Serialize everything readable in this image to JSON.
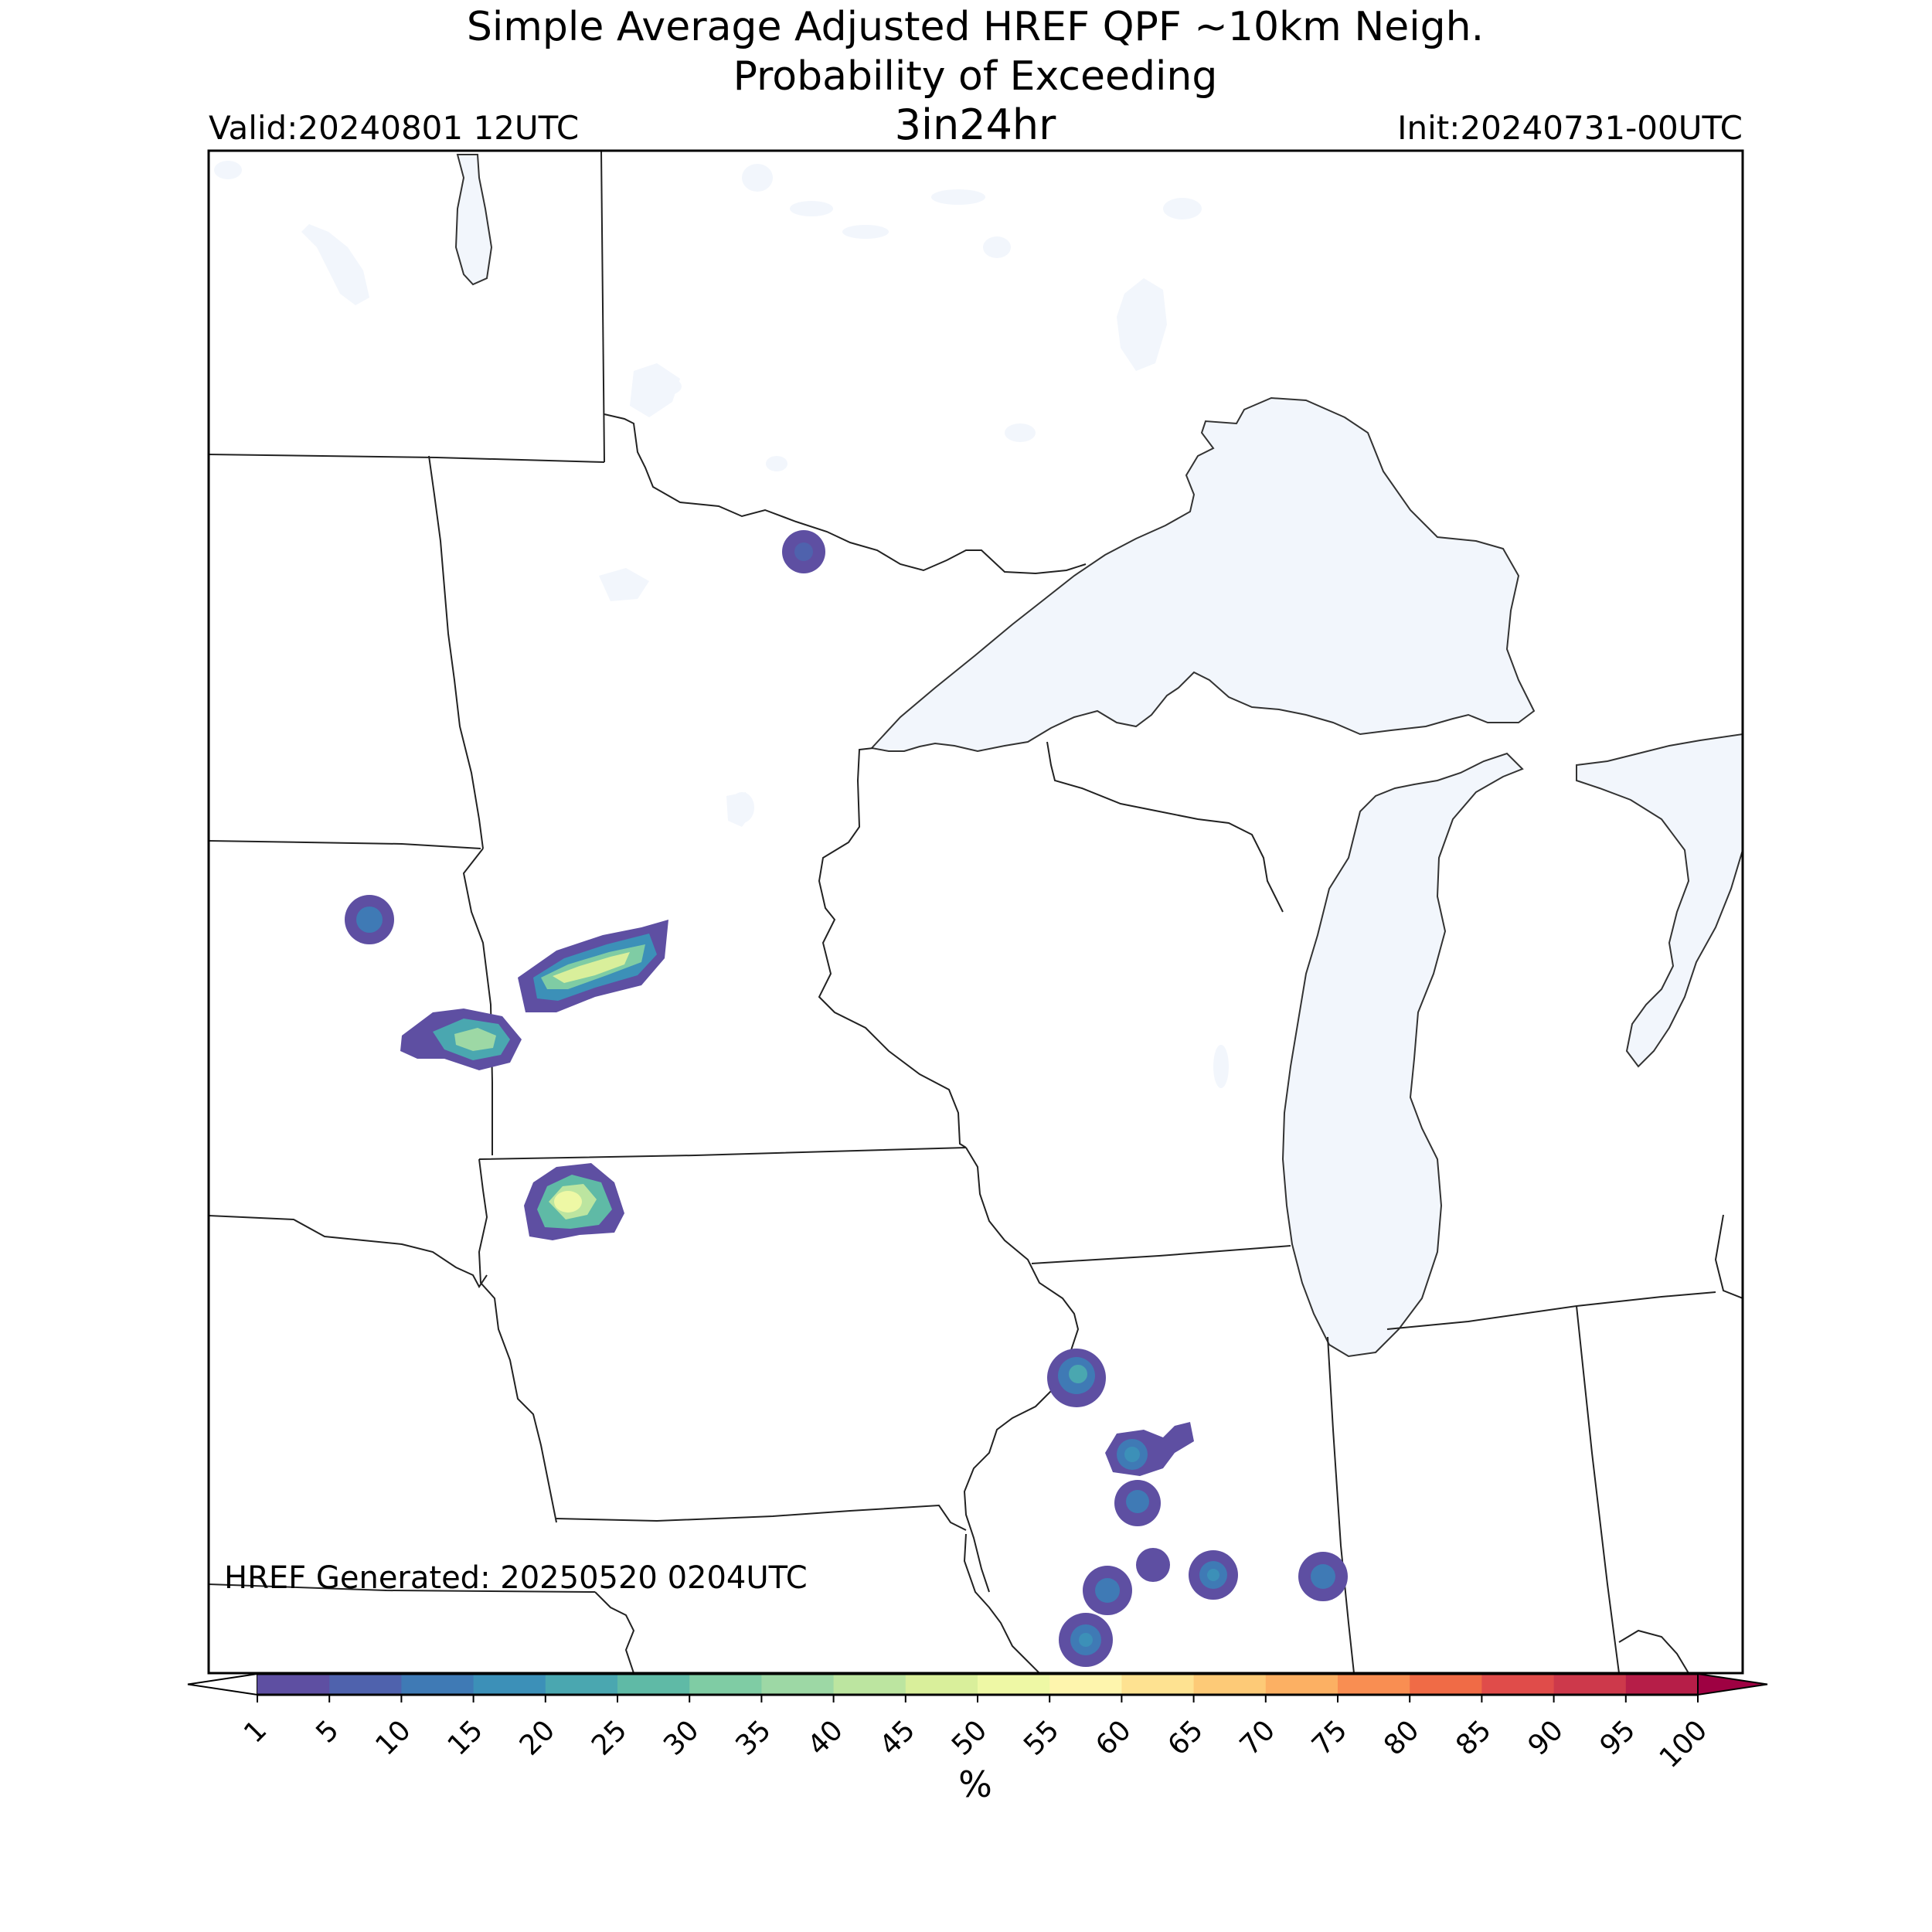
{
  "title": {
    "line1": "Simple Average Adjusted HREF QPF ~10km Neigh.",
    "line2": "Probability of Exceeding",
    "threshold": "3in24hr",
    "valid": "Valid:20240801 12UTC",
    "init": "Init:20240731-00UTC"
  },
  "footer": {
    "generated": "HREF Generated: 20250520 0204UTC"
  },
  "colorbar": {
    "unit_label": "%",
    "ticks": [
      "1",
      "5",
      "10",
      "15",
      "20",
      "25",
      "30",
      "35",
      "40",
      "45",
      "50",
      "55",
      "60",
      "65",
      "70",
      "75",
      "80",
      "85",
      "90",
      "95",
      "100"
    ],
    "colors": [
      "#5e4fa2",
      "#4f62ad",
      "#3f7ab5",
      "#3c90b8",
      "#4aa7b0",
      "#5fbaa6",
      "#7fcca4",
      "#9dd8a5",
      "#bce5a0",
      "#d9ef9b",
      "#eef8a5",
      "#fef5ad",
      "#fee291",
      "#fdca77",
      "#fcb063",
      "#f98e52",
      "#f06b46",
      "#e04c4a",
      "#cd394b",
      "#b61e48",
      "#9e0142"
    ]
  },
  "map_colors": {
    "water": "#f2f6fc",
    "land": "#ffffff",
    "borders": "#222222"
  },
  "chart_data": {
    "type": "heatmap",
    "value_unit": "%",
    "features": [
      {
        "id": "minnesota-arrowhead-cell",
        "max_probability": 5
      },
      {
        "id": "south-dakota-cell",
        "max_probability": 10
      },
      {
        "id": "sw-minnesota-band",
        "max_probability": 45
      },
      {
        "id": "ne-south-dakota-cell",
        "max_probability": 35
      },
      {
        "id": "nw-iowa-cell",
        "max_probability": 45
      },
      {
        "id": "nw-illinois-cell",
        "max_probability": 20
      },
      {
        "id": "n-illinois-cell-a",
        "max_probability": 15
      },
      {
        "id": "n-illinois-cell-b",
        "max_probability": 10
      },
      {
        "id": "c-illinois-cell-a",
        "max_probability": 5
      },
      {
        "id": "c-illinois-cell-b",
        "max_probability": 15
      },
      {
        "id": "c-illinois-cell-c",
        "max_probability": 10
      },
      {
        "id": "indiana-cell",
        "max_probability": 10
      },
      {
        "id": "s-illinois-cell",
        "max_probability": 15
      }
    ]
  }
}
